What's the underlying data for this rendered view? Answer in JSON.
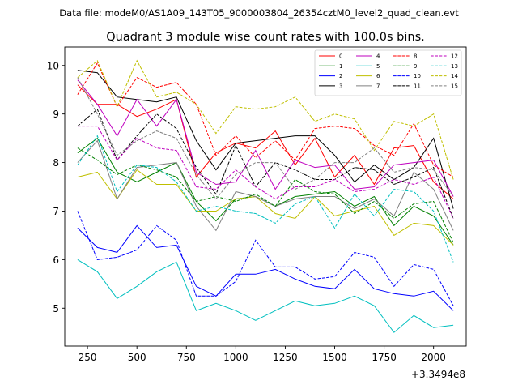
{
  "header": "Data file: modeM0/AS1A09_143T05_9000003804_26354cztM0_level2_quad_clean.evt",
  "chart_data": {
    "type": "line",
    "title": "Quadrant 3 module wise count rates with 100.0s bins.",
    "xlabel": "",
    "ylabel": "",
    "x_offset_label": "+3.3494e8",
    "xlim": [
      135,
      2165
    ],
    "ylim": [
      4.22,
      10.38
    ],
    "xticks": [
      250,
      500,
      750,
      1000,
      1250,
      1500,
      1750,
      2000
    ],
    "yticks": [
      5,
      6,
      7,
      8,
      9,
      10
    ],
    "x": [
      200,
      300,
      400,
      500,
      600,
      700,
      800,
      900,
      1000,
      1100,
      1200,
      1300,
      1400,
      1500,
      1600,
      1700,
      1800,
      1900,
      2000,
      2100
    ],
    "legend_position": "top-right",
    "series": [
      {
        "name": "0",
        "color": "#ff0000",
        "dash": false,
        "values": [
          9.6,
          9.2,
          9.2,
          8.95,
          9.1,
          9.3,
          7.7,
          8.2,
          8.4,
          8.3,
          8.65,
          7.95,
          8.5,
          7.7,
          8.15,
          7.55,
          8.3,
          8.35,
          7.6,
          7.25
        ]
      },
      {
        "name": "1",
        "color": "#008000",
        "dash": false,
        "values": [
          8.2,
          8.5,
          7.8,
          7.6,
          7.8,
          8.0,
          7.2,
          6.8,
          7.25,
          7.3,
          7.1,
          7.3,
          7.35,
          7.4,
          7.1,
          7.3,
          6.7,
          7.1,
          6.9,
          6.3
        ]
      },
      {
        "name": "2",
        "color": "#0000ff",
        "dash": false,
        "values": [
          6.65,
          6.25,
          6.15,
          6.7,
          6.25,
          6.3,
          5.45,
          5.25,
          5.7,
          5.7,
          5.8,
          5.6,
          5.45,
          5.4,
          5.8,
          5.4,
          5.3,
          5.25,
          5.35,
          4.95
        ]
      },
      {
        "name": "3",
        "color": "#000000",
        "dash": false,
        "values": [
          9.9,
          9.85,
          9.35,
          9.3,
          9.25,
          9.35,
          8.45,
          7.85,
          8.4,
          8.45,
          8.5,
          8.55,
          8.55,
          8.15,
          7.6,
          7.95,
          7.65,
          7.9,
          8.5,
          7.05
        ]
      },
      {
        "name": "4",
        "color": "#bf00bf",
        "dash": false,
        "values": [
          9.7,
          9.2,
          8.55,
          9.3,
          8.75,
          9.3,
          7.8,
          7.55,
          7.6,
          8.25,
          7.45,
          8.05,
          7.9,
          7.95,
          7.45,
          7.5,
          7.95,
          8.0,
          8.05,
          7.3
        ]
      },
      {
        "name": "5",
        "color": "#00bfbf",
        "dash": false,
        "values": [
          6.0,
          5.75,
          5.2,
          5.45,
          5.75,
          5.95,
          4.95,
          5.1,
          4.95,
          4.75,
          4.95,
          5.15,
          5.05,
          5.1,
          5.25,
          5.05,
          4.5,
          4.85,
          4.6,
          4.65
        ]
      },
      {
        "name": "6",
        "color": "#bfbf00",
        "dash": false,
        "values": [
          7.7,
          7.8,
          7.25,
          7.85,
          7.55,
          7.55,
          7.0,
          7.0,
          7.25,
          7.3,
          6.95,
          6.85,
          7.3,
          6.9,
          7.0,
          7.1,
          6.5,
          6.75,
          6.7,
          6.3
        ]
      },
      {
        "name": "7",
        "color": "#808080",
        "dash": false,
        "values": [
          8.0,
          8.45,
          7.25,
          7.9,
          7.95,
          8.0,
          7.1,
          6.6,
          7.4,
          7.3,
          7.1,
          7.25,
          7.3,
          7.3,
          7.05,
          7.25,
          6.9,
          7.8,
          7.45,
          6.6
        ]
      },
      {
        "name": "8",
        "color": "#ff0000",
        "dash": true,
        "values": [
          9.4,
          10.05,
          9.15,
          9.75,
          9.55,
          9.65,
          9.2,
          8.15,
          8.55,
          8.1,
          8.45,
          8.05,
          8.7,
          8.75,
          8.7,
          8.35,
          8.15,
          8.8,
          7.95,
          7.7
        ]
      },
      {
        "name": "9",
        "color": "#008000",
        "dash": true,
        "values": [
          8.3,
          8.05,
          7.75,
          7.95,
          7.85,
          7.7,
          7.2,
          7.3,
          7.2,
          7.35,
          7.1,
          7.65,
          7.4,
          7.35,
          6.95,
          7.2,
          6.85,
          7.15,
          7.2,
          6.35
        ]
      },
      {
        "name": "10",
        "color": "#0000ff",
        "dash": true,
        "values": [
          7.0,
          6.0,
          6.05,
          6.2,
          6.7,
          6.4,
          5.25,
          5.25,
          5.55,
          6.4,
          5.85,
          5.85,
          5.6,
          5.65,
          6.15,
          6.05,
          5.45,
          5.9,
          5.8,
          5.05
        ]
      },
      {
        "name": "11",
        "color": "#000000",
        "dash": true,
        "values": [
          8.75,
          9.1,
          8.05,
          8.55,
          9.0,
          8.7,
          7.9,
          7.35,
          8.35,
          7.5,
          8.0,
          7.85,
          7.65,
          7.65,
          7.9,
          7.85,
          7.55,
          7.7,
          7.9,
          6.85
        ]
      },
      {
        "name": "12",
        "color": "#bf00bf",
        "dash": true,
        "values": [
          8.75,
          8.75,
          8.05,
          8.5,
          8.3,
          8.25,
          7.5,
          7.45,
          7.85,
          7.5,
          7.25,
          7.5,
          7.5,
          7.65,
          7.4,
          7.45,
          7.65,
          7.55,
          7.7,
          6.85
        ]
      },
      {
        "name": "13",
        "color": "#00bfbf",
        "dash": true,
        "values": [
          7.95,
          8.55,
          7.4,
          7.95,
          7.9,
          7.6,
          7.0,
          7.1,
          7.0,
          6.95,
          6.75,
          7.15,
          7.3,
          6.65,
          7.35,
          6.9,
          7.45,
          7.4,
          7.0,
          5.95
        ]
      },
      {
        "name": "14",
        "color": "#bfbf00",
        "dash": true,
        "values": [
          9.75,
          10.1,
          9.15,
          10.1,
          9.35,
          9.45,
          9.2,
          8.6,
          9.15,
          9.1,
          9.15,
          9.35,
          8.85,
          9.0,
          8.9,
          8.25,
          8.85,
          8.75,
          9.0,
          7.65
        ]
      },
      {
        "name": "15",
        "color": "#808080",
        "dash": true,
        "values": [
          9.75,
          9.0,
          8.15,
          8.45,
          8.65,
          8.5,
          7.75,
          7.25,
          7.75,
          8.0,
          8.0,
          7.45,
          7.65,
          8.0,
          8.0,
          8.3,
          7.8,
          7.9,
          7.85,
          7.3
        ]
      }
    ]
  }
}
